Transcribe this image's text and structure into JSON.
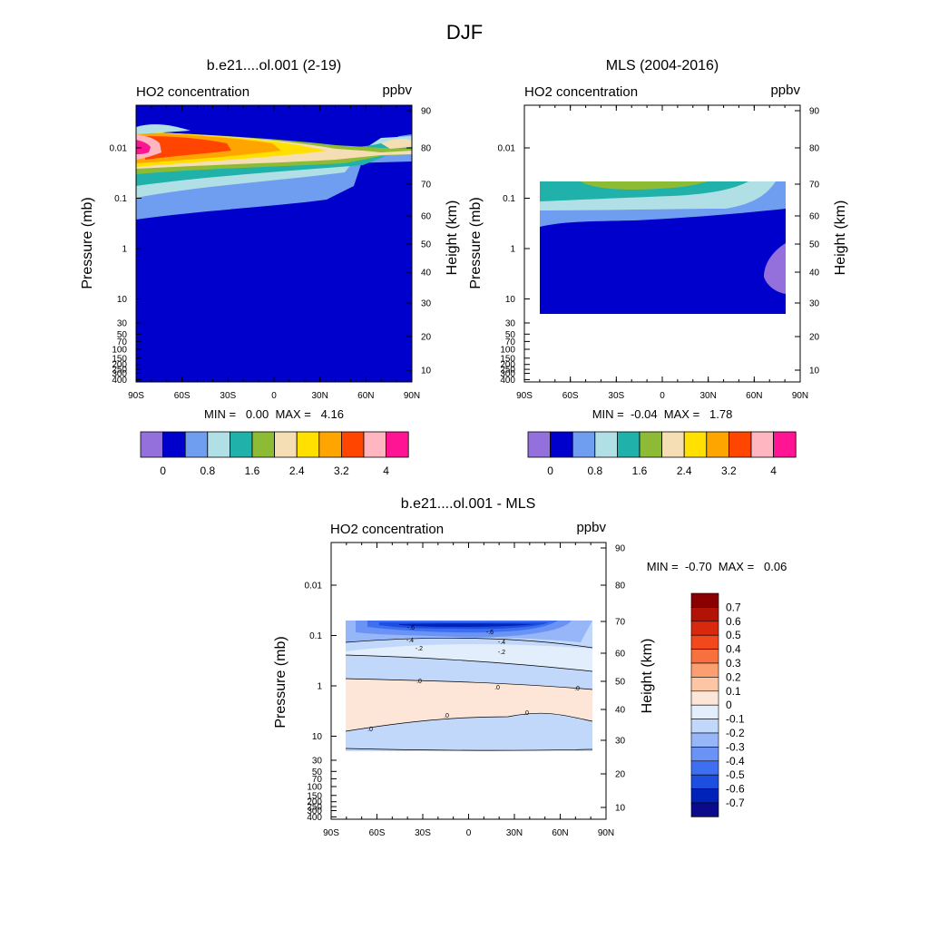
{
  "figure_title": "DJF",
  "colors": {
    "seq": [
      "#9370DB",
      "#0000CD",
      "#6F9EF0",
      "#B0E0E6",
      "#20B2AA",
      "#8DBB36",
      "#F5DEB3",
      "#FFE000",
      "#FFA500",
      "#FF4500",
      "#FFB6C1",
      "#FF1493"
    ],
    "div": [
      "#0A0A8A",
      "#0022B8",
      "#1C4FE0",
      "#3E6FF0",
      "#6B93F5",
      "#97B6F8",
      "#C2D8FA",
      "#E2EEFC",
      "#FDE6D7",
      "#FCC6A4",
      "#FB9F70",
      "#F9703F",
      "#F2491C",
      "#D8280E",
      "#B31206",
      "#8A0000"
    ]
  },
  "chart_data": [
    {
      "type": "heatmap",
      "title": "b.e21....ol.001 (2-19)",
      "left_string": "HO2 concentration",
      "right_string": "ppbv",
      "xlabel": "",
      "ylabel": "Pressure (mb)",
      "y2label": "Height (km)",
      "x_ticks": [
        "90S",
        "60S",
        "30S",
        "0",
        "30N",
        "60N",
        "90N"
      ],
      "y_ticks": [
        "0.01",
        "0.1",
        "1",
        "10",
        "30",
        "50",
        "70",
        "100",
        "150",
        "200",
        "250",
        "300",
        "400"
      ],
      "y2_ticks": [
        "90",
        "80",
        "70",
        "60",
        "50",
        "40",
        "30",
        "20",
        "10"
      ],
      "stats": "MIN =   0.00  MAX =   4.16",
      "min": 0.0,
      "max": 4.16,
      "colorbar_labels": [
        "0",
        "0.8",
        "1.6",
        "2.4",
        "3.2",
        "4"
      ],
      "levels": [
        0.4,
        0.8,
        1.2,
        1.6,
        2.0,
        2.4,
        2.8,
        3.2,
        3.6,
        4.0,
        4.4
      ]
    },
    {
      "type": "heatmap",
      "title": "MLS (2004-2016)",
      "left_string": "HO2 concentration",
      "right_string": "ppbv",
      "xlabel": "",
      "ylabel": "Pressure (mb)",
      "y2label": "Height (km)",
      "x_ticks": [
        "90S",
        "60S",
        "30S",
        "0",
        "30N",
        "60N",
        "90N"
      ],
      "y_ticks": [
        "0.01",
        "0.1",
        "1",
        "10",
        "30",
        "50",
        "70",
        "100",
        "150",
        "200",
        "250",
        "300",
        "400"
      ],
      "y2_ticks": [
        "90",
        "80",
        "70",
        "60",
        "50",
        "40",
        "30",
        "20",
        "10"
      ],
      "stats": "MIN =  -0.04  MAX =   1.78",
      "min": -0.04,
      "max": 1.78,
      "colorbar_labels": [
        "0",
        "0.8",
        "1.6",
        "2.4",
        "3.2",
        "4"
      ],
      "levels": [
        0.4,
        0.8,
        1.2,
        1.6,
        2.0,
        2.4,
        2.8,
        3.2,
        3.6,
        4.0,
        4.4
      ]
    },
    {
      "type": "heatmap",
      "title": "b.e21....ol.001 - MLS",
      "left_string": "HO2 concentration",
      "right_string": "ppbv",
      "xlabel": "",
      "ylabel": "Pressure (mb)",
      "y2label": "Height (km)",
      "x_ticks": [
        "90S",
        "60S",
        "30S",
        "0",
        "30N",
        "60N",
        "90N"
      ],
      "y_ticks": [
        "0.01",
        "0.1",
        "1",
        "10",
        "30",
        "50",
        "70",
        "100",
        "150",
        "200",
        "250",
        "300",
        "400"
      ],
      "y2_ticks": [
        "90",
        "80",
        "70",
        "60",
        "50",
        "40",
        "30",
        "20",
        "10"
      ],
      "stats": "MIN =  -0.70  MAX =   0.06",
      "min": -0.7,
      "max": 0.06,
      "colorbar_labels": [
        "0.7",
        "0.6",
        "0.5",
        "0.4",
        "0.3",
        "0.2",
        "0.1",
        "0",
        "-0.1",
        "-0.2",
        "-0.3",
        "-0.4",
        "-0.5",
        "-0.6",
        "-0.7"
      ],
      "contour_labels": [
        "-.6",
        "-.4",
        "-.2",
        ".0"
      ]
    }
  ]
}
